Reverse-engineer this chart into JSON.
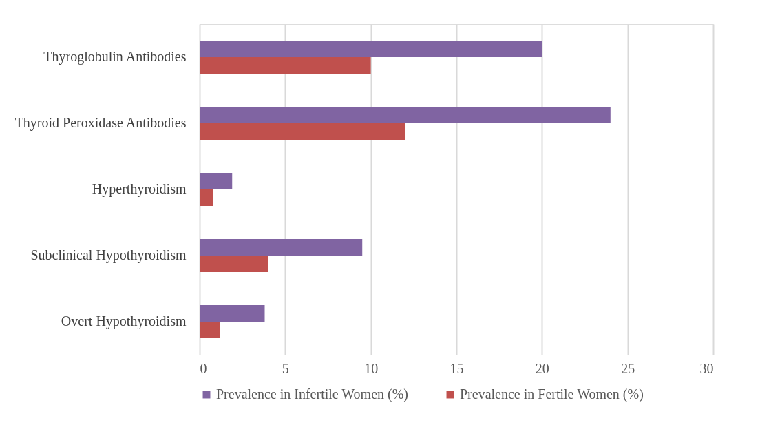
{
  "chart_data": {
    "type": "bar",
    "orientation": "horizontal",
    "categories": [
      "Thyroglobulin Antibodies",
      "Thyroid Peroxidase Antibodies",
      "Hyperthyroidism",
      "Subclinical Hypothyroidism",
      "Overt Hypothyroidism"
    ],
    "series": [
      {
        "name": "Prevalence in Infertile Women (%)",
        "color": "#8064a2",
        "values": [
          20,
          24,
          1.9,
          9.5,
          3.8
        ]
      },
      {
        "name": "Prevalence in Fertile Women (%)",
        "color": "#c0504d",
        "values": [
          10,
          12,
          0.8,
          4,
          1.2
        ]
      }
    ],
    "xlim": [
      0,
      30
    ],
    "xticks": [
      0,
      5,
      10,
      15,
      20,
      25,
      30
    ],
    "grid": "x",
    "legend": "bottom"
  }
}
